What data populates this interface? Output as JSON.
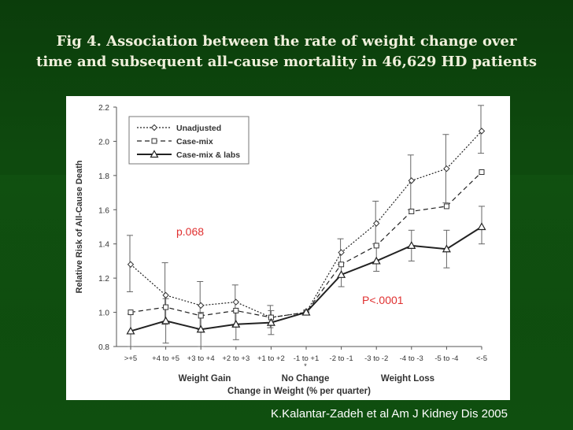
{
  "slide": {
    "title_line1": "Fig 4. Association between the rate of weight change over",
    "title_line2": "time and subsequent all-cause mortality in 46,629 HD patients",
    "citation": "K.Kalantar-Zadeh et al Am J Kidney Dis 2005"
  },
  "chart_data": {
    "type": "line",
    "ylabel": "Relative Risk of All-Cause Death",
    "xlabel": "Change in Weight (% per quarter)",
    "ylim": [
      0.8,
      2.2
    ],
    "yticks": [
      "0.8",
      "1.0",
      "1.2",
      "1.4",
      "1.6",
      "1.8",
      "2.0",
      "2.2"
    ],
    "categories": [
      ">+5",
      "+4 to +5",
      "+3 to +4",
      "+2 to +3",
      "+1 to +2",
      "-1 to +1",
      "-2 to -1",
      "-3 to -2",
      "-4 to -3",
      "-5 to -4",
      "<-5"
    ],
    "group_labels": [
      "Weight Gain",
      "No Change",
      "Weight Loss"
    ],
    "series": [
      {
        "name": "Unadjusted",
        "style": "dotted",
        "marker": "diamond",
        "values": [
          1.28,
          1.1,
          1.04,
          1.06,
          0.97,
          1.0,
          1.35,
          1.52,
          1.77,
          1.84,
          2.06
        ]
      },
      {
        "name": "Case-mix",
        "style": "dashed",
        "marker": "square",
        "values": [
          1.0,
          1.03,
          0.98,
          1.01,
          0.97,
          1.0,
          1.28,
          1.39,
          1.59,
          1.62,
          1.82
        ]
      },
      {
        "name": "Case-mix & labs",
        "style": "solid",
        "marker": "triangle",
        "values": [
          0.89,
          0.95,
          0.9,
          0.93,
          0.94,
          1.0,
          1.22,
          1.3,
          1.39,
          1.37,
          1.5
        ]
      }
    ],
    "error_bars": {
      "unadjusted": [
        [
          1.12,
          1.45
        ],
        [
          0.93,
          1.29
        ],
        [
          0.9,
          1.18
        ],
        [
          0.92,
          1.16
        ],
        [
          0.91,
          1.04
        ],
        [
          1.0,
          1.0
        ],
        [
          1.28,
          1.43
        ],
        [
          1.4,
          1.65
        ],
        [
          1.6,
          1.92
        ],
        [
          1.64,
          2.04
        ],
        [
          1.93,
          2.21
        ]
      ],
      "case_mix_labs": [
        [
          0.8,
          0.99
        ],
        [
          0.82,
          1.08
        ],
        [
          0.8,
          1.0
        ],
        [
          0.84,
          1.01
        ],
        [
          0.87,
          1.01
        ],
        [
          1.0,
          1.0
        ],
        [
          1.15,
          1.29
        ],
        [
          1.24,
          1.39
        ],
        [
          1.3,
          1.48
        ],
        [
          1.26,
          1.48
        ],
        [
          1.4,
          1.62
        ]
      ]
    },
    "annotations": [
      {
        "text": "p.068",
        "color": "#e03030"
      },
      {
        "text": "P<.0001",
        "color": "#e03030"
      }
    ],
    "legend": "top-left",
    "grid": false
  }
}
